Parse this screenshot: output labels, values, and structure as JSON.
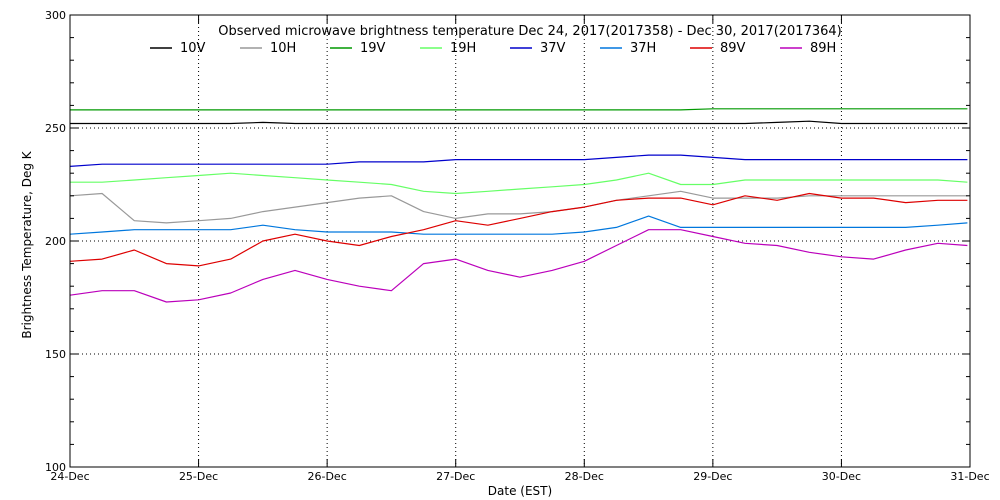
{
  "chart_data": {
    "type": "line",
    "title": "Observed microwave brightness temperature Dec 24, 2017(2017358) - Dec 30, 2017(2017364)",
    "xlabel": "Date (EST)",
    "ylabel": "Brightness Temperature, Deg K",
    "xlim": [
      0,
      7
    ],
    "ylim": [
      100,
      300
    ],
    "x_ticks": [
      0,
      1,
      2,
      3,
      4,
      5,
      6,
      7
    ],
    "x_tick_labels": [
      "24-Dec",
      "25-Dec",
      "26-Dec",
      "27-Dec",
      "28-Dec",
      "29-Dec",
      "30-Dec",
      "31-Dec"
    ],
    "y_ticks": [
      100,
      150,
      200,
      250,
      300
    ],
    "y_tick_labels": [
      "100",
      "150",
      "200",
      "250",
      "300"
    ],
    "grid": "dotted",
    "legend_position": "top",
    "x": [
      0,
      0.25,
      0.5,
      0.75,
      1,
      1.25,
      1.5,
      1.75,
      2,
      2.25,
      2.5,
      2.75,
      3,
      3.25,
      3.5,
      3.75,
      4,
      4.25,
      4.5,
      4.75,
      5,
      5.25,
      5.5,
      5.75,
      6,
      6.25,
      6.5,
      6.75,
      6.98
    ],
    "series": [
      {
        "name": "10V",
        "color": "#000000",
        "values": [
          252,
          252,
          252,
          252,
          252,
          252,
          252.5,
          252,
          252,
          252,
          252,
          252,
          252,
          252,
          252,
          252,
          252,
          252,
          252,
          252,
          252,
          252,
          252.5,
          253,
          252,
          252,
          252,
          252,
          252
        ]
      },
      {
        "name": "10H",
        "color": "#999999",
        "values": [
          220,
          221,
          209,
          208,
          209,
          210,
          213,
          215,
          217,
          219,
          220,
          213,
          210,
          212,
          212,
          213,
          215,
          218,
          220,
          222,
          219,
          219,
          219,
          220,
          220,
          220,
          220,
          220,
          220
        ]
      },
      {
        "name": "19V",
        "color": "#009900",
        "values": [
          258,
          258,
          258,
          258,
          258,
          258,
          258,
          258,
          258,
          258,
          258,
          258,
          258,
          258,
          258,
          258,
          258,
          258,
          258,
          258,
          258.5,
          258.5,
          258.5,
          258.5,
          258.5,
          258.5,
          258.5,
          258.5,
          258.5
        ]
      },
      {
        "name": "19H",
        "color": "#66ff66",
        "values": [
          226,
          226,
          227,
          228,
          229,
          230,
          229,
          228,
          227,
          226,
          225,
          222,
          221,
          222,
          223,
          224,
          225,
          227,
          230,
          225,
          225,
          227,
          227,
          227,
          227,
          227,
          227,
          227,
          226
        ]
      },
      {
        "name": "37V",
        "color": "#0000cc",
        "values": [
          233,
          234,
          234,
          234,
          234,
          234,
          234,
          234,
          234,
          235,
          235,
          235,
          236,
          236,
          236,
          236,
          236,
          237,
          238,
          238,
          237,
          236,
          236,
          236,
          236,
          236,
          236,
          236,
          236
        ]
      },
      {
        "name": "37H",
        "color": "#0077dd",
        "values": [
          203,
          204,
          205,
          205,
          205,
          205,
          207,
          205,
          204,
          204,
          204,
          203,
          203,
          203,
          203,
          203,
          204,
          206,
          211,
          206,
          206,
          206,
          206,
          206,
          206,
          206,
          206,
          207,
          208
        ]
      },
      {
        "name": "89V",
        "color": "#dd0000",
        "values": [
          191,
          192,
          196,
          190,
          189,
          192,
          200,
          203,
          200,
          198,
          202,
          205,
          209,
          207,
          210,
          213,
          215,
          218,
          219,
          219,
          216,
          220,
          218,
          221,
          219,
          219,
          217,
          218,
          218
        ]
      },
      {
        "name": "89H",
        "color": "#bb00bb",
        "values": [
          176,
          178,
          178,
          173,
          174,
          177,
          183,
          187,
          183,
          180,
          178,
          190,
          192,
          187,
          184,
          187,
          191,
          198,
          205,
          205,
          202,
          199,
          198,
          195,
          193,
          192,
          196,
          199,
          198
        ]
      }
    ]
  }
}
